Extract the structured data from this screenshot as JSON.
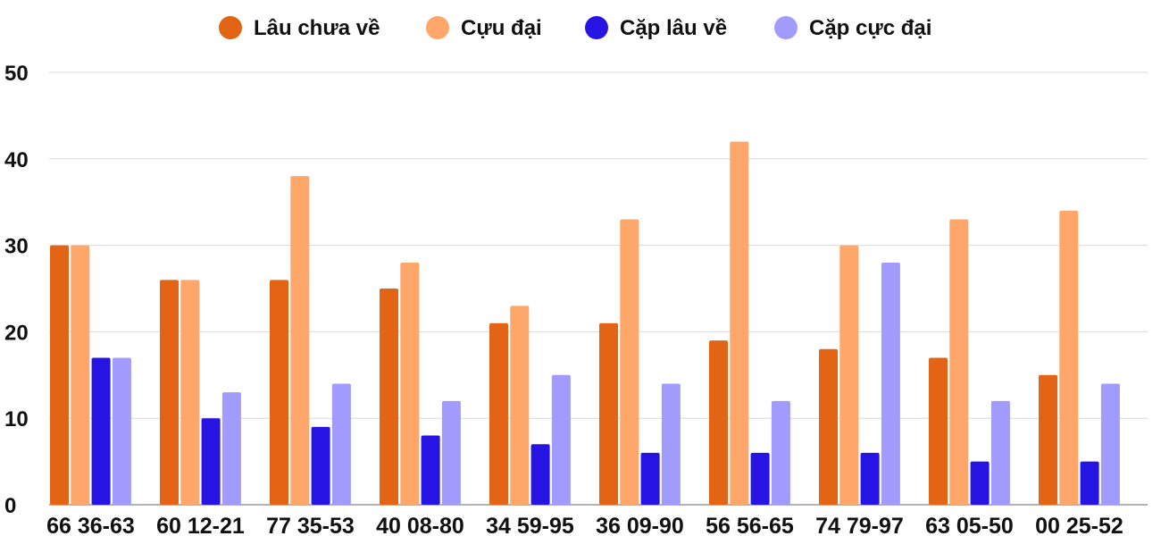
{
  "chart_data": {
    "type": "bar",
    "categories": [
      "66 36-63",
      "60 12-21",
      "77 35-53",
      "40 08-80",
      "34 59-95",
      "36 09-90",
      "56 56-65",
      "74 79-97",
      "63 05-50",
      "00 25-52"
    ],
    "series": [
      {
        "name": "Lâu chưa về",
        "color": "#e36414",
        "values": [
          30,
          26,
          26,
          25,
          21,
          21,
          19,
          18,
          17,
          15
        ]
      },
      {
        "name": "Cựu đại",
        "color": "#ffa66b",
        "values": [
          30,
          26,
          38,
          28,
          23,
          33,
          42,
          30,
          33,
          34
        ]
      },
      {
        "name": "Cặp lâu về",
        "color": "#2614e3",
        "values": [
          17,
          10,
          9,
          8,
          7,
          6,
          6,
          6,
          5,
          5
        ]
      },
      {
        "name": "Cặp cực đại",
        "color": "#a29bfe",
        "values": [
          17,
          13,
          14,
          12,
          15,
          14,
          12,
          28,
          12,
          14
        ]
      }
    ],
    "ylim": [
      0,
      50
    ],
    "yticks": [
      "0",
      "10",
      "20",
      "30",
      "40",
      "50"
    ],
    "grid": true,
    "legend": "top-center"
  }
}
